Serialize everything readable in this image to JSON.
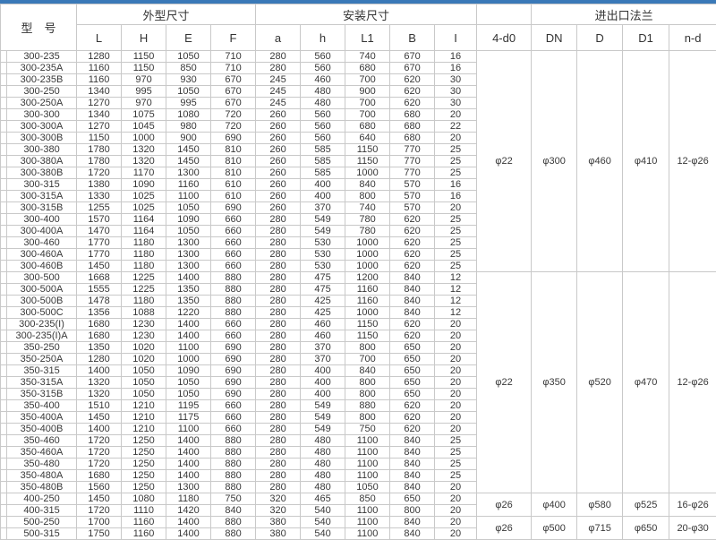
{
  "table": {
    "header": {
      "model": "型　号",
      "groups": {
        "outline": "外型尺寸",
        "install": "安装尺寸",
        "flange": "进出口法兰"
      },
      "sub": [
        "L",
        "H",
        "E",
        "F",
        "a",
        "h",
        "L1",
        "B",
        "I",
        "4-d0",
        "DN",
        "D",
        "D1",
        "n-d"
      ]
    },
    "rows": [
      [
        "300-235",
        "1280",
        "1150",
        "1050",
        "710",
        "280",
        "560",
        "740",
        "670",
        "16"
      ],
      [
        "300-235A",
        "1160",
        "1150",
        "850",
        "710",
        "280",
        "560",
        "680",
        "670",
        "16"
      ],
      [
        "300-235B",
        "1160",
        "970",
        "930",
        "670",
        "245",
        "460",
        "700",
        "620",
        "30"
      ],
      [
        "300-250",
        "1340",
        "995",
        "1050",
        "670",
        "245",
        "480",
        "900",
        "620",
        "30"
      ],
      [
        "300-250A",
        "1270",
        "970",
        "995",
        "670",
        "245",
        "480",
        "700",
        "620",
        "30"
      ],
      [
        "300-300",
        "1340",
        "1075",
        "1080",
        "720",
        "260",
        "560",
        "700",
        "680",
        "20"
      ],
      [
        "300-300A",
        "1270",
        "1045",
        "980",
        "720",
        "260",
        "560",
        "680",
        "680",
        "22"
      ],
      [
        "300-300B",
        "1150",
        "1000",
        "900",
        "690",
        "260",
        "560",
        "640",
        "680",
        "20"
      ],
      [
        "300-380",
        "1780",
        "1320",
        "1450",
        "810",
        "260",
        "585",
        "1150",
        "770",
        "25"
      ],
      [
        "300-380A",
        "1780",
        "1320",
        "1450",
        "810",
        "260",
        "585",
        "1150",
        "770",
        "25"
      ],
      [
        "300-380B",
        "1720",
        "1170",
        "1300",
        "810",
        "260",
        "585",
        "1000",
        "770",
        "25"
      ],
      [
        "300-315",
        "1380",
        "1090",
        "1160",
        "610",
        "260",
        "400",
        "840",
        "570",
        "16"
      ],
      [
        "300-315A",
        "1330",
        "1025",
        "1100",
        "610",
        "260",
        "400",
        "800",
        "570",
        "16"
      ],
      [
        "300-315B",
        "1255",
        "1025",
        "1050",
        "690",
        "260",
        "370",
        "740",
        "570",
        "20"
      ],
      [
        "300-400",
        "1570",
        "1164",
        "1090",
        "660",
        "280",
        "549",
        "780",
        "620",
        "25"
      ],
      [
        "300-400A",
        "1470",
        "1164",
        "1050",
        "660",
        "280",
        "549",
        "780",
        "620",
        "25"
      ],
      [
        "300-460",
        "1770",
        "1180",
        "1300",
        "660",
        "280",
        "530",
        "1000",
        "620",
        "25"
      ],
      [
        "300-460A",
        "1770",
        "1180",
        "1300",
        "660",
        "280",
        "530",
        "1000",
        "620",
        "25"
      ],
      [
        "300-460B",
        "1450",
        "1180",
        "1300",
        "660",
        "280",
        "530",
        "1000",
        "620",
        "25"
      ],
      [
        "300-500",
        "1668",
        "1225",
        "1400",
        "880",
        "280",
        "475",
        "1200",
        "840",
        "12"
      ],
      [
        "300-500A",
        "1555",
        "1225",
        "1350",
        "880",
        "280",
        "475",
        "1160",
        "840",
        "12"
      ],
      [
        "300-500B",
        "1478",
        "1180",
        "1350",
        "880",
        "280",
        "425",
        "1160",
        "840",
        "12"
      ],
      [
        "300-500C",
        "1356",
        "1088",
        "1220",
        "880",
        "280",
        "425",
        "1000",
        "840",
        "12"
      ],
      [
        "300-235(I)",
        "1680",
        "1230",
        "1400",
        "660",
        "280",
        "460",
        "1150",
        "620",
        "20"
      ],
      [
        "300-235(I)A",
        "1680",
        "1230",
        "1400",
        "660",
        "280",
        "460",
        "1150",
        "620",
        "20"
      ],
      [
        "350-250",
        "1350",
        "1020",
        "1100",
        "690",
        "280",
        "370",
        "800",
        "650",
        "20"
      ],
      [
        "350-250A",
        "1280",
        "1020",
        "1000",
        "690",
        "280",
        "370",
        "700",
        "650",
        "20"
      ],
      [
        "350-315",
        "1400",
        "1050",
        "1090",
        "690",
        "280",
        "400",
        "840",
        "650",
        "20"
      ],
      [
        "350-315A",
        "1320",
        "1050",
        "1050",
        "690",
        "280",
        "400",
        "800",
        "650",
        "20"
      ],
      [
        "350-315B",
        "1320",
        "1050",
        "1050",
        "690",
        "280",
        "400",
        "800",
        "650",
        "20"
      ],
      [
        "350-400",
        "1510",
        "1210",
        "1195",
        "660",
        "280",
        "549",
        "880",
        "620",
        "20"
      ],
      [
        "350-400A",
        "1450",
        "1210",
        "1175",
        "660",
        "280",
        "549",
        "800",
        "620",
        "20"
      ],
      [
        "350-400B",
        "1400",
        "1210",
        "1100",
        "660",
        "280",
        "549",
        "750",
        "620",
        "20"
      ],
      [
        "350-460",
        "1720",
        "1250",
        "1400",
        "880",
        "280",
        "480",
        "1100",
        "840",
        "25"
      ],
      [
        "350-460A",
        "1720",
        "1250",
        "1400",
        "880",
        "280",
        "480",
        "1100",
        "840",
        "25"
      ],
      [
        "350-480",
        "1720",
        "1250",
        "1400",
        "880",
        "280",
        "480",
        "1100",
        "840",
        "25"
      ],
      [
        "350-480A",
        "1680",
        "1250",
        "1400",
        "880",
        "280",
        "480",
        "1100",
        "840",
        "25"
      ],
      [
        "350-480B",
        "1560",
        "1250",
        "1300",
        "880",
        "280",
        "480",
        "1050",
        "840",
        "20"
      ],
      [
        "400-250",
        "1450",
        "1080",
        "1180",
        "750",
        "320",
        "465",
        "850",
        "650",
        "20"
      ],
      [
        "400-315",
        "1720",
        "1110",
        "1420",
        "840",
        "320",
        "540",
        "1100",
        "800",
        "20"
      ],
      [
        "500-250",
        "1700",
        "1160",
        "1400",
        "880",
        "380",
        "540",
        "1100",
        "840",
        "20"
      ],
      [
        "500-315",
        "1750",
        "1160",
        "1400",
        "880",
        "380",
        "540",
        "1100",
        "840",
        "20"
      ]
    ],
    "flange_sections": [
      {
        "span": 19,
        "d0": "φ22",
        "dn": "φ300",
        "d": "φ460",
        "d1": "φ410",
        "nd": "12-φ26"
      },
      {
        "span": 19,
        "d0": "φ22",
        "dn": "φ350",
        "d": "φ520",
        "d1": "φ470",
        "nd": "12-φ26"
      },
      {
        "span": 2,
        "d0": "φ26",
        "dn": "φ400",
        "d": "φ580",
        "d1": "φ525",
        "nd": "16-φ26"
      },
      {
        "span": 2,
        "d0": "φ26",
        "dn": "φ500",
        "d": "φ715",
        "d1": "φ650",
        "nd": "20-φ30"
      }
    ],
    "colors": {
      "accent_top": "#3a79b8",
      "grid": "#c9c9c9",
      "text": "#383838"
    }
  }
}
